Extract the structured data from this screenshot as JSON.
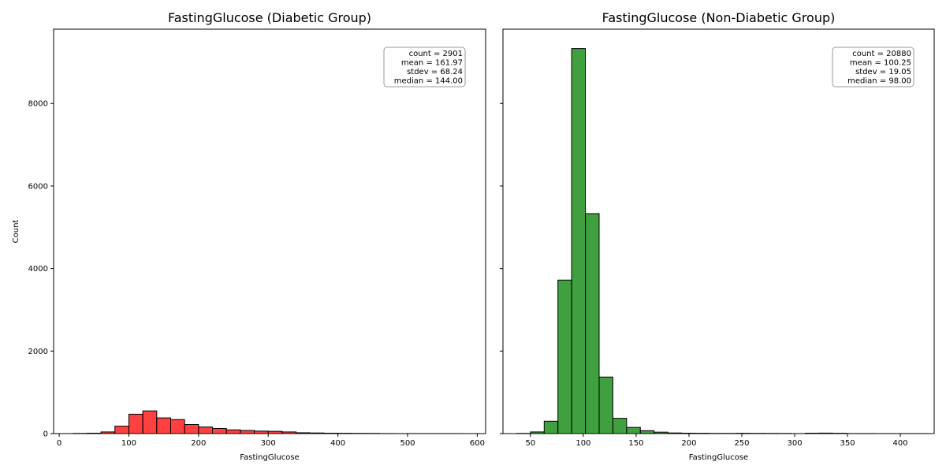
{
  "chart_data": [
    {
      "type": "bar",
      "title": "FastingGlucose (Diabetic Group)",
      "xlabel": "FastingGlucose",
      "ylabel": "Count",
      "xlim": [
        -8,
        612
      ],
      "ylim": [
        0,
        9800
      ],
      "xticks": [
        0,
        100,
        200,
        300,
        400,
        500,
        600
      ],
      "yticks": [
        0,
        2000,
        4000,
        6000,
        8000
      ],
      "color": "#ff0000",
      "bins": [
        {
          "x0": 20,
          "x1": 40,
          "value": 5
        },
        {
          "x0": 40,
          "x1": 60,
          "value": 10
        },
        {
          "x0": 60,
          "x1": 80,
          "value": 40
        },
        {
          "x0": 80,
          "x1": 100,
          "value": 180
        },
        {
          "x0": 100,
          "x1": 120,
          "value": 470
        },
        {
          "x0": 120,
          "x1": 140,
          "value": 550
        },
        {
          "x0": 140,
          "x1": 160,
          "value": 380
        },
        {
          "x0": 160,
          "x1": 180,
          "value": 340
        },
        {
          "x0": 180,
          "x1": 200,
          "value": 220
        },
        {
          "x0": 200,
          "x1": 220,
          "value": 160
        },
        {
          "x0": 220,
          "x1": 240,
          "value": 125
        },
        {
          "x0": 240,
          "x1": 260,
          "value": 90
        },
        {
          "x0": 260,
          "x1": 280,
          "value": 75
        },
        {
          "x0": 280,
          "x1": 300,
          "value": 60
        },
        {
          "x0": 300,
          "x1": 320,
          "value": 55
        },
        {
          "x0": 320,
          "x1": 340,
          "value": 40
        },
        {
          "x0": 340,
          "x1": 360,
          "value": 20
        },
        {
          "x0": 360,
          "x1": 380,
          "value": 15
        },
        {
          "x0": 380,
          "x1": 400,
          "value": 10
        },
        {
          "x0": 400,
          "x1": 420,
          "value": 8
        },
        {
          "x0": 420,
          "x1": 440,
          "value": 6
        },
        {
          "x0": 440,
          "x1": 460,
          "value": 5
        },
        {
          "x0": 460,
          "x1": 480,
          "value": 2
        },
        {
          "x0": 480,
          "x1": 500,
          "value": 1
        },
        {
          "x0": 500,
          "x1": 520,
          "value": 1
        },
        {
          "x0": 520,
          "x1": 540,
          "value": 1
        },
        {
          "x0": 540,
          "x1": 560,
          "value": 1
        },
        {
          "x0": 560,
          "x1": 580,
          "value": 1
        }
      ],
      "stats_box": [
        "count = 2901",
        "mean = 161.97",
        "stdev = 68.24",
        "median = 144.00"
      ],
      "legend_position": "top-right"
    },
    {
      "type": "bar",
      "title": "FastingGlucose (Non-Diabetic Group)",
      "xlabel": "FastingGlucose",
      "ylabel": "",
      "xlim": [
        24,
        432
      ],
      "ylim": [
        0,
        9800
      ],
      "xticks": [
        50,
        100,
        150,
        200,
        250,
        300,
        350,
        400
      ],
      "yticks": [
        0,
        2000,
        4000,
        6000,
        8000
      ],
      "color": "#008000",
      "bins": [
        {
          "x0": 37,
          "x1": 50,
          "value": 5
        },
        {
          "x0": 50,
          "x1": 63,
          "value": 40
        },
        {
          "x0": 63,
          "x1": 76,
          "value": 300
        },
        {
          "x0": 76,
          "x1": 89,
          "value": 3720
        },
        {
          "x0": 89,
          "x1": 102,
          "value": 9330
        },
        {
          "x0": 102,
          "x1": 115,
          "value": 5330
        },
        {
          "x0": 115,
          "x1": 128,
          "value": 1370
        },
        {
          "x0": 128,
          "x1": 141,
          "value": 370
        },
        {
          "x0": 141,
          "x1": 154,
          "value": 150
        },
        {
          "x0": 154,
          "x1": 167,
          "value": 70
        },
        {
          "x0": 167,
          "x1": 180,
          "value": 35
        },
        {
          "x0": 180,
          "x1": 193,
          "value": 15
        },
        {
          "x0": 193,
          "x1": 206,
          "value": 10
        },
        {
          "x0": 206,
          "x1": 219,
          "value": 8
        },
        {
          "x0": 219,
          "x1": 232,
          "value": 5
        },
        {
          "x0": 232,
          "x1": 245,
          "value": 5
        },
        {
          "x0": 245,
          "x1": 258,
          "value": 8
        },
        {
          "x0": 258,
          "x1": 271,
          "value": 6
        },
        {
          "x0": 271,
          "x1": 284,
          "value": 5
        },
        {
          "x0": 284,
          "x1": 297,
          "value": 4
        },
        {
          "x0": 297,
          "x1": 310,
          "value": 1
        },
        {
          "x0": 310,
          "x1": 323,
          "value": 10
        },
        {
          "x0": 323,
          "x1": 336,
          "value": 12
        },
        {
          "x0": 336,
          "x1": 349,
          "value": 8
        },
        {
          "x0": 349,
          "x1": 362,
          "value": 2
        },
        {
          "x0": 362,
          "x1": 375,
          "value": 2
        },
        {
          "x0": 375,
          "x1": 388,
          "value": 1
        },
        {
          "x0": 388,
          "x1": 401,
          "value": 1
        },
        {
          "x0": 401,
          "x1": 414,
          "value": 1
        },
        {
          "x0": 414,
          "x1": 427,
          "value": 1
        }
      ],
      "stats_box": [
        "count = 20880",
        "mean = 100.25",
        "stdev = 19.05",
        "median = 98.00"
      ],
      "legend_position": "top-right"
    }
  ]
}
